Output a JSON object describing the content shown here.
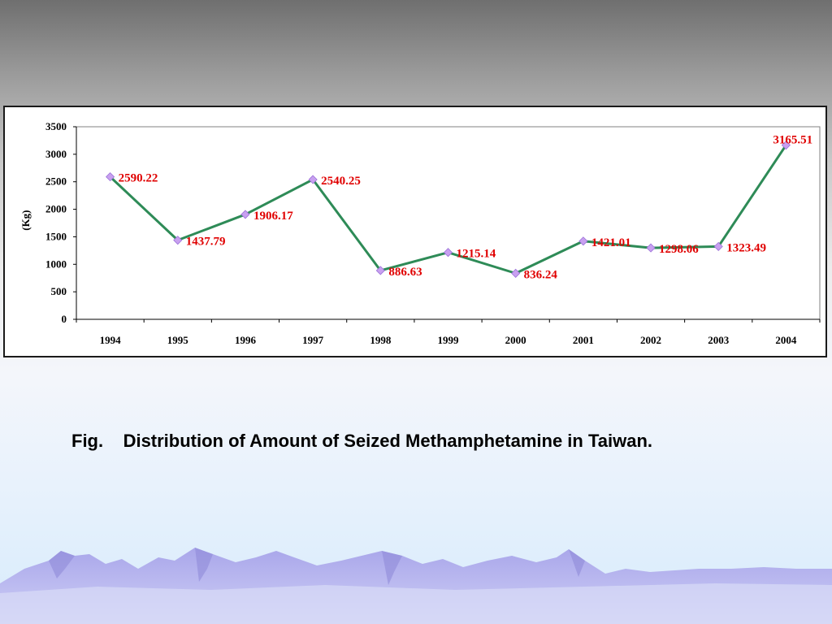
{
  "caption": {
    "prefix": "Fig.",
    "text": "Distribution of Amount of Seized Methamphetamine in Taiwan."
  },
  "chart_data": {
    "type": "line",
    "title": "",
    "xlabel": "",
    "ylabel": "(Kg)",
    "ylim": [
      0,
      3500
    ],
    "yticks": [
      0,
      500,
      1000,
      1500,
      2000,
      2500,
      3000,
      3500
    ],
    "categories": [
      "1994",
      "1995",
      "1996",
      "1997",
      "1998",
      "1999",
      "2000",
      "2001",
      "2002",
      "2003",
      "2004"
    ],
    "series": [
      {
        "values": [
          2590.22,
          1437.79,
          1906.17,
          2540.25,
          886.63,
          1215.14,
          836.24,
          1421.01,
          1298.06,
          1323.49,
          3165.51
        ],
        "labels": [
          "2590.22",
          "1437.79",
          "1906.17",
          "2540.25",
          "886.63",
          "1215.14",
          "836.24",
          "1421.01",
          "1298.06",
          "1323.49",
          "3165.51"
        ],
        "line_color": "#2e8b57",
        "marker_color": "#c8a0f0",
        "label_color": "#e00000"
      }
    ],
    "grid": false,
    "legend": "none"
  }
}
